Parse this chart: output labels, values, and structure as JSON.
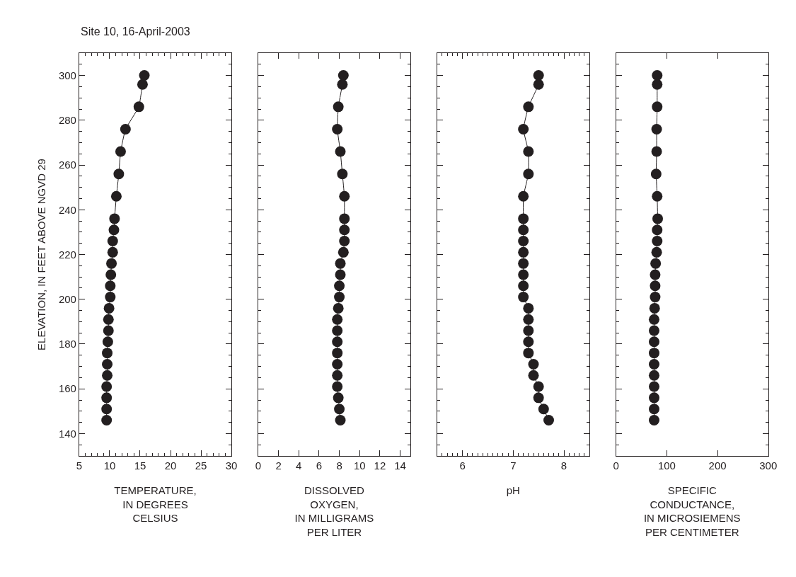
{
  "chart_data": [
    {
      "type": "line",
      "title": "Site 10, 16-April-2003",
      "xlabel": "TEMPERATURE,\nIN DEGREES\nCELSIUS",
      "ylabel": "ELEVATION, IN FEET ABOVE NGVD 29",
      "marker": "circle",
      "line_style": "solid",
      "series": [
        {
          "color": "#231f20",
          "x": [
            15.7,
            15.4,
            14.8,
            12.6,
            11.8,
            11.5,
            11.1,
            10.8,
            10.7,
            10.5,
            10.5,
            10.3,
            10.2,
            10.1,
            10.1,
            9.9,
            9.8,
            9.8,
            9.7,
            9.6,
            9.6,
            9.6,
            9.5,
            9.5,
            9.5,
            9.5
          ],
          "values": [
            300,
            296,
            286,
            276,
            266,
            256,
            246,
            236,
            231,
            226,
            221,
            216,
            211,
            206,
            201,
            196,
            191,
            186,
            181,
            176,
            171,
            166,
            161,
            156,
            151,
            146
          ]
        }
      ],
      "xlim": [
        5,
        30
      ],
      "xticks": [
        5,
        {
          "value": 6,
          "label": null
        },
        {
          "value": 7,
          "label": null
        },
        {
          "value": 8,
          "label": null
        },
        {
          "value": 9,
          "label": null
        },
        10,
        {
          "value": 11,
          "label": null
        },
        {
          "value": 12,
          "label": null
        },
        {
          "value": 13,
          "label": null
        },
        {
          "value": 14,
          "label": null
        },
        15,
        {
          "value": 16,
          "label": null
        },
        {
          "value": 17,
          "label": null
        },
        {
          "value": 18,
          "label": null
        },
        {
          "value": 19,
          "label": null
        },
        20,
        {
          "value": 21,
          "label": null
        },
        {
          "value": 22,
          "label": null
        },
        {
          "value": 23,
          "label": null
        },
        {
          "value": 24,
          "label": null
        },
        25,
        {
          "value": 26,
          "label": null
        },
        {
          "value": 27,
          "label": null
        },
        {
          "value": 28,
          "label": null
        },
        {
          "value": 29,
          "label": null
        },
        30
      ],
      "ylim": [
        130,
        310
      ],
      "yticks": [
        {
          "value": 135,
          "label": null
        },
        140,
        {
          "value": 145,
          "label": null
        },
        {
          "value": 150,
          "label": null
        },
        {
          "value": 155,
          "label": null
        },
        160,
        {
          "value": 165,
          "label": null
        },
        {
          "value": 170,
          "label": null
        },
        {
          "value": 175,
          "label": null
        },
        180,
        {
          "value": 185,
          "label": null
        },
        {
          "value": 190,
          "label": null
        },
        {
          "value": 195,
          "label": null
        },
        200,
        {
          "value": 205,
          "label": null
        },
        {
          "value": 210,
          "label": null
        },
        {
          "value": 215,
          "label": null
        },
        220,
        {
          "value": 225,
          "label": null
        },
        {
          "value": 230,
          "label": null
        },
        {
          "value": 235,
          "label": null
        },
        240,
        {
          "value": 245,
          "label": null
        },
        {
          "value": 250,
          "label": null
        },
        {
          "value": 255,
          "label": null
        },
        260,
        {
          "value": 265,
          "label": null
        },
        {
          "value": 270,
          "label": null
        },
        {
          "value": 275,
          "label": null
        },
        280,
        {
          "value": 285,
          "label": null
        },
        {
          "value": 290,
          "label": null
        },
        {
          "value": 295,
          "label": null
        },
        300,
        {
          "value": 305,
          "label": null
        }
      ]
    },
    {
      "type": "line",
      "xlabel": "DISSOLVED\nOXYGEN,\nIN MILLIGRAMS\nPER LITER",
      "marker": "circle",
      "line_style": "solid",
      "tick_labels": "x",
      "series": [
        {
          "color": "#231f20",
          "x": [
            8.4,
            8.3,
            7.9,
            7.8,
            8.1,
            8.3,
            8.5,
            8.5,
            8.5,
            8.5,
            8.4,
            8.1,
            8.1,
            8.0,
            8.0,
            7.9,
            7.8,
            7.8,
            7.8,
            7.8,
            7.8,
            7.8,
            7.8,
            7.9,
            8.0,
            8.1
          ],
          "values": [
            300,
            296,
            286,
            276,
            266,
            256,
            246,
            236,
            231,
            226,
            221,
            216,
            211,
            206,
            201,
            196,
            191,
            186,
            181,
            176,
            171,
            166,
            161,
            156,
            151,
            146
          ]
        }
      ],
      "xlim": [
        0,
        15
      ],
      "xticks": [
        0,
        2,
        4,
        6,
        8,
        10,
        12,
        14
      ],
      "ylim": [
        130,
        310
      ],
      "yticks": [
        {
          "value": 135,
          "label": null
        },
        140,
        {
          "value": 145,
          "label": null
        },
        {
          "value": 150,
          "label": null
        },
        {
          "value": 155,
          "label": null
        },
        160,
        {
          "value": 165,
          "label": null
        },
        {
          "value": 170,
          "label": null
        },
        {
          "value": 175,
          "label": null
        },
        180,
        {
          "value": 185,
          "label": null
        },
        {
          "value": 190,
          "label": null
        },
        {
          "value": 195,
          "label": null
        },
        200,
        {
          "value": 205,
          "label": null
        },
        {
          "value": 210,
          "label": null
        },
        {
          "value": 215,
          "label": null
        },
        220,
        {
          "value": 225,
          "label": null
        },
        {
          "value": 230,
          "label": null
        },
        {
          "value": 235,
          "label": null
        },
        240,
        {
          "value": 245,
          "label": null
        },
        {
          "value": 250,
          "label": null
        },
        {
          "value": 255,
          "label": null
        },
        260,
        {
          "value": 265,
          "label": null
        },
        {
          "value": 270,
          "label": null
        },
        {
          "value": 275,
          "label": null
        },
        280,
        {
          "value": 285,
          "label": null
        },
        {
          "value": 290,
          "label": null
        },
        {
          "value": 295,
          "label": null
        },
        300,
        {
          "value": 305,
          "label": null
        }
      ]
    },
    {
      "type": "line",
      "xlabel": "pH",
      "marker": "circle",
      "line_style": "solid",
      "tick_labels": "x",
      "series": [
        {
          "color": "#231f20",
          "x": [
            7.5,
            7.5,
            7.3,
            7.2,
            7.3,
            7.3,
            7.2,
            7.2,
            7.2,
            7.2,
            7.2,
            7.2,
            7.2,
            7.2,
            7.2,
            7.3,
            7.3,
            7.3,
            7.3,
            7.3,
            7.4,
            7.4,
            7.5,
            7.5,
            7.6,
            7.7
          ],
          "values": [
            300,
            296,
            286,
            276,
            266,
            256,
            246,
            236,
            231,
            226,
            221,
            216,
            211,
            206,
            201,
            196,
            191,
            186,
            181,
            176,
            171,
            166,
            161,
            156,
            151,
            146
          ]
        }
      ],
      "xlim": [
        5.5,
        8.5
      ],
      "xticks": [
        {
          "value": 5.6,
          "label": null
        },
        {
          "value": 5.7,
          "label": null
        },
        {
          "value": 5.8,
          "label": null
        },
        {
          "value": 5.9,
          "label": null
        },
        6,
        {
          "value": 6.1,
          "label": null
        },
        {
          "value": 6.2,
          "label": null
        },
        {
          "value": 6.3,
          "label": null
        },
        {
          "value": 6.4,
          "label": null
        },
        {
          "value": 6.5,
          "label": null
        },
        {
          "value": 6.6,
          "label": null
        },
        {
          "value": 6.7,
          "label": null
        },
        {
          "value": 6.8,
          "label": null
        },
        {
          "value": 6.9,
          "label": null
        },
        7,
        {
          "value": 7.1,
          "label": null
        },
        {
          "value": 7.2,
          "label": null
        },
        {
          "value": 7.3,
          "label": null
        },
        {
          "value": 7.4,
          "label": null
        },
        {
          "value": 7.5,
          "label": null
        },
        {
          "value": 7.6,
          "label": null
        },
        {
          "value": 7.7,
          "label": null
        },
        {
          "value": 7.8,
          "label": null
        },
        {
          "value": 7.9,
          "label": null
        },
        8,
        {
          "value": 8.1,
          "label": null
        },
        {
          "value": 8.2,
          "label": null
        },
        {
          "value": 8.3,
          "label": null
        },
        {
          "value": 8.4,
          "label": null
        }
      ],
      "ylim": [
        130,
        310
      ],
      "yticks": [
        {
          "value": 135,
          "label": null
        },
        140,
        {
          "value": 145,
          "label": null
        },
        {
          "value": 150,
          "label": null
        },
        {
          "value": 155,
          "label": null
        },
        160,
        {
          "value": 165,
          "label": null
        },
        {
          "value": 170,
          "label": null
        },
        {
          "value": 175,
          "label": null
        },
        180,
        {
          "value": 185,
          "label": null
        },
        {
          "value": 190,
          "label": null
        },
        {
          "value": 195,
          "label": null
        },
        200,
        {
          "value": 205,
          "label": null
        },
        {
          "value": 210,
          "label": null
        },
        {
          "value": 215,
          "label": null
        },
        220,
        {
          "value": 225,
          "label": null
        },
        {
          "value": 230,
          "label": null
        },
        {
          "value": 235,
          "label": null
        },
        240,
        {
          "value": 245,
          "label": null
        },
        {
          "value": 250,
          "label": null
        },
        {
          "value": 255,
          "label": null
        },
        260,
        {
          "value": 265,
          "label": null
        },
        {
          "value": 270,
          "label": null
        },
        {
          "value": 275,
          "label": null
        },
        280,
        {
          "value": 285,
          "label": null
        },
        {
          "value": 290,
          "label": null
        },
        {
          "value": 295,
          "label": null
        },
        300,
        {
          "value": 305,
          "label": null
        }
      ]
    },
    {
      "type": "line",
      "xlabel": "SPECIFIC\nCONDUCTANCE,\nIN MICROSIEMENS\nPER CENTIMETER",
      "marker": "circle",
      "line_style": "solid",
      "tick_labels": "x",
      "series": [
        {
          "color": "#231f20",
          "x": [
            81,
            81,
            81,
            80,
            80,
            79,
            81,
            82,
            81,
            81,
            80,
            78,
            77,
            77,
            77,
            76,
            75,
            75,
            75,
            75,
            75,
            75,
            75,
            75,
            75,
            75
          ],
          "values": [
            300,
            296,
            286,
            276,
            266,
            256,
            246,
            236,
            231,
            226,
            221,
            216,
            211,
            206,
            201,
            196,
            191,
            186,
            181,
            176,
            171,
            166,
            161,
            156,
            151,
            146
          ]
        }
      ],
      "xlim": [
        0,
        300
      ],
      "xticks": [
        0,
        100,
        200,
        300
      ],
      "ylim": [
        130,
        310
      ],
      "yticks": [
        {
          "value": 135,
          "label": null
        },
        140,
        {
          "value": 145,
          "label": null
        },
        {
          "value": 150,
          "label": null
        },
        {
          "value": 155,
          "label": null
        },
        160,
        {
          "value": 165,
          "label": null
        },
        {
          "value": 170,
          "label": null
        },
        {
          "value": 175,
          "label": null
        },
        180,
        {
          "value": 185,
          "label": null
        },
        {
          "value": 190,
          "label": null
        },
        {
          "value": 195,
          "label": null
        },
        200,
        {
          "value": 205,
          "label": null
        },
        {
          "value": 210,
          "label": null
        },
        {
          "value": 215,
          "label": null
        },
        220,
        {
          "value": 225,
          "label": null
        },
        {
          "value": 230,
          "label": null
        },
        {
          "value": 235,
          "label": null
        },
        240,
        {
          "value": 245,
          "label": null
        },
        {
          "value": 250,
          "label": null
        },
        {
          "value": 255,
          "label": null
        },
        260,
        {
          "value": 265,
          "label": null
        },
        {
          "value": 270,
          "label": null
        },
        {
          "value": 275,
          "label": null
        },
        280,
        {
          "value": 285,
          "label": null
        },
        {
          "value": 290,
          "label": null
        },
        {
          "value": 295,
          "label": null
        },
        300,
        {
          "value": 305,
          "label": null
        }
      ]
    }
  ]
}
